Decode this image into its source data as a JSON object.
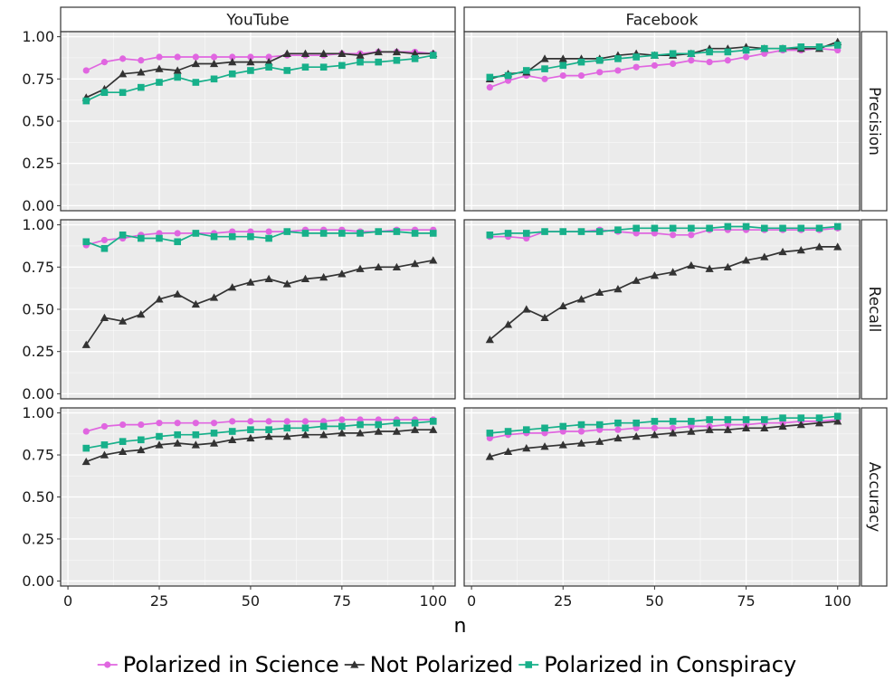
{
  "chart_data": {
    "type": "line",
    "layout": "facet-grid",
    "columns": [
      "YouTube",
      "Facebook"
    ],
    "rows": [
      "Precision",
      "Recall",
      "Accuracy"
    ],
    "xlabel": "n",
    "ylabel": "",
    "xlim": [
      -2,
      106
    ],
    "ylim": [
      -0.03,
      1.03
    ],
    "xticks": [
      0,
      25,
      50,
      75,
      100
    ],
    "xtick_labels": [
      "0",
      "25",
      "50",
      "75",
      "100"
    ],
    "yticks": [
      0,
      0.25,
      0.5,
      0.75,
      1
    ],
    "ytick_labels": [
      "0.00",
      "0.25",
      "0.50",
      "0.75",
      "1.00"
    ],
    "grid": true,
    "legend_position": "bottom",
    "x": [
      5,
      10,
      15,
      20,
      25,
      30,
      35,
      40,
      45,
      50,
      55,
      60,
      65,
      70,
      75,
      80,
      85,
      90,
      95,
      100
    ],
    "series_styles": [
      {
        "name": "Polarized in Science",
        "color": "#E066E0",
        "marker": "circle"
      },
      {
        "name": "Not Polarized",
        "color": "#333333",
        "marker": "triangle"
      },
      {
        "name": "Polarized in Conspiracy",
        "color": "#17B08A",
        "marker": "square"
      }
    ],
    "panels": [
      {
        "column": "YouTube",
        "row": "Precision",
        "series": [
          {
            "name": "Polarized in Science",
            "values": [
              0.8,
              0.85,
              0.87,
              0.86,
              0.88,
              0.88,
              0.88,
              0.88,
              0.88,
              0.88,
              0.88,
              0.89,
              0.89,
              0.89,
              0.9,
              0.9,
              0.91,
              0.91,
              0.91,
              0.9
            ]
          },
          {
            "name": "Not Polarized",
            "values": [
              0.64,
              0.69,
              0.78,
              0.79,
              0.81,
              0.8,
              0.84,
              0.84,
              0.85,
              0.85,
              0.85,
              0.9,
              0.9,
              0.9,
              0.9,
              0.89,
              0.91,
              0.91,
              0.9,
              0.9
            ]
          },
          {
            "name": "Polarized in Conspiracy",
            "values": [
              0.62,
              0.67,
              0.67,
              0.7,
              0.73,
              0.76,
              0.73,
              0.75,
              0.78,
              0.8,
              0.82,
              0.8,
              0.82,
              0.82,
              0.83,
              0.85,
              0.85,
              0.86,
              0.87,
              0.89
            ]
          }
        ]
      },
      {
        "column": "Facebook",
        "row": "Precision",
        "series": [
          {
            "name": "Polarized in Science",
            "values": [
              0.7,
              0.74,
              0.77,
              0.75,
              0.77,
              0.77,
              0.79,
              0.8,
              0.82,
              0.83,
              0.84,
              0.86,
              0.85,
              0.86,
              0.88,
              0.9,
              0.92,
              0.92,
              0.93,
              0.92
            ]
          },
          {
            "name": "Not Polarized",
            "values": [
              0.75,
              0.78,
              0.79,
              0.87,
              0.87,
              0.87,
              0.87,
              0.89,
              0.9,
              0.89,
              0.89,
              0.9,
              0.93,
              0.93,
              0.94,
              0.93,
              0.93,
              0.93,
              0.93,
              0.97
            ]
          },
          {
            "name": "Polarized in Conspiracy",
            "values": [
              0.76,
              0.77,
              0.8,
              0.81,
              0.83,
              0.85,
              0.86,
              0.87,
              0.88,
              0.89,
              0.9,
              0.9,
              0.91,
              0.91,
              0.92,
              0.93,
              0.93,
              0.94,
              0.94,
              0.95
            ]
          }
        ]
      },
      {
        "column": "YouTube",
        "row": "Recall",
        "series": [
          {
            "name": "Polarized in Science",
            "values": [
              0.88,
              0.91,
              0.92,
              0.94,
              0.95,
              0.95,
              0.95,
              0.95,
              0.96,
              0.96,
              0.96,
              0.96,
              0.97,
              0.97,
              0.97,
              0.96,
              0.96,
              0.97,
              0.97,
              0.97
            ]
          },
          {
            "name": "Not Polarized",
            "values": [
              0.29,
              0.45,
              0.43,
              0.47,
              0.56,
              0.59,
              0.53,
              0.57,
              0.63,
              0.66,
              0.68,
              0.65,
              0.68,
              0.69,
              0.71,
              0.74,
              0.75,
              0.75,
              0.77,
              0.79
            ]
          },
          {
            "name": "Polarized in Conspiracy",
            "values": [
              0.9,
              0.86,
              0.94,
              0.92,
              0.92,
              0.9,
              0.95,
              0.93,
              0.93,
              0.93,
              0.92,
              0.96,
              0.95,
              0.95,
              0.95,
              0.95,
              0.96,
              0.96,
              0.95,
              0.95
            ]
          }
        ]
      },
      {
        "column": "Facebook",
        "row": "Recall",
        "series": [
          {
            "name": "Polarized in Science",
            "values": [
              0.93,
              0.93,
              0.92,
              0.96,
              0.96,
              0.96,
              0.97,
              0.96,
              0.95,
              0.95,
              0.94,
              0.94,
              0.97,
              0.97,
              0.97,
              0.97,
              0.97,
              0.97,
              0.97,
              0.98
            ]
          },
          {
            "name": "Not Polarized",
            "values": [
              0.32,
              0.41,
              0.5,
              0.45,
              0.52,
              0.56,
              0.6,
              0.62,
              0.67,
              0.7,
              0.72,
              0.76,
              0.74,
              0.75,
              0.79,
              0.81,
              0.84,
              0.85,
              0.87,
              0.87
            ]
          },
          {
            "name": "Polarized in Conspiracy",
            "values": [
              0.94,
              0.95,
              0.95,
              0.96,
              0.96,
              0.96,
              0.96,
              0.97,
              0.98,
              0.98,
              0.98,
              0.98,
              0.98,
              0.99,
              0.99,
              0.98,
              0.98,
              0.98,
              0.98,
              0.99
            ]
          }
        ]
      },
      {
        "column": "YouTube",
        "row": "Accuracy",
        "series": [
          {
            "name": "Polarized in Science",
            "values": [
              0.89,
              0.92,
              0.93,
              0.93,
              0.94,
              0.94,
              0.94,
              0.94,
              0.95,
              0.95,
              0.95,
              0.95,
              0.95,
              0.95,
              0.96,
              0.96,
              0.96,
              0.96,
              0.96,
              0.96
            ]
          },
          {
            "name": "Not Polarized",
            "values": [
              0.71,
              0.75,
              0.77,
              0.78,
              0.81,
              0.82,
              0.81,
              0.82,
              0.84,
              0.85,
              0.86,
              0.86,
              0.87,
              0.87,
              0.88,
              0.88,
              0.89,
              0.89,
              0.9,
              0.9
            ]
          },
          {
            "name": "Polarized in Conspiracy",
            "values": [
              0.79,
              0.81,
              0.83,
              0.84,
              0.86,
              0.87,
              0.87,
              0.88,
              0.89,
              0.9,
              0.9,
              0.91,
              0.91,
              0.92,
              0.92,
              0.93,
              0.93,
              0.94,
              0.94,
              0.95
            ]
          }
        ]
      },
      {
        "column": "Facebook",
        "row": "Accuracy",
        "series": [
          {
            "name": "Polarized in Science",
            "values": [
              0.85,
              0.87,
              0.88,
              0.88,
              0.89,
              0.89,
              0.9,
              0.9,
              0.91,
              0.91,
              0.91,
              0.92,
              0.92,
              0.93,
              0.93,
              0.94,
              0.94,
              0.95,
              0.95,
              0.96
            ]
          },
          {
            "name": "Not Polarized",
            "values": [
              0.74,
              0.77,
              0.79,
              0.8,
              0.81,
              0.82,
              0.83,
              0.85,
              0.86,
              0.87,
              0.88,
              0.89,
              0.9,
              0.9,
              0.91,
              0.91,
              0.92,
              0.93,
              0.94,
              0.95
            ]
          },
          {
            "name": "Polarized in Conspiracy",
            "values": [
              0.88,
              0.89,
              0.9,
              0.91,
              0.92,
              0.93,
              0.93,
              0.94,
              0.94,
              0.95,
              0.95,
              0.95,
              0.96,
              0.96,
              0.96,
              0.96,
              0.97,
              0.97,
              0.97,
              0.98
            ]
          }
        ]
      }
    ]
  }
}
